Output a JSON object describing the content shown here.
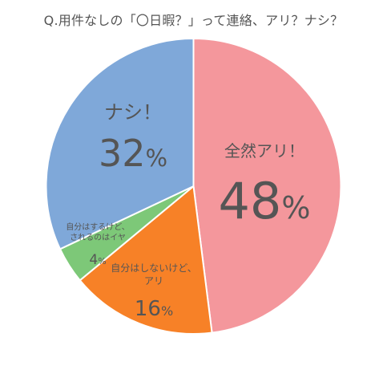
{
  "chart_data": {
    "type": "pie",
    "title": "Q.用件なしの「〇日暇？」って連絡、アリ？ナシ？",
    "slices": [
      {
        "label": "全然アリ！",
        "value": 48,
        "value_label": "48%",
        "color": "#F4979C"
      },
      {
        "label": "自分はしないけど、アリ",
        "label_lines": [
          "自分はしないけど、",
          "アリ"
        ],
        "value": 16,
        "value_label": "16%",
        "color": "#F78127"
      },
      {
        "label": "自分はするけど、されるのはイヤ",
        "label_lines": [
          "自分はするけど、",
          "されるのはイヤ"
        ],
        "value": 4,
        "value_label": "4%",
        "color": "#7DC878"
      },
      {
        "label": "ナシ！",
        "value": 32,
        "value_label": "32%",
        "color": "#7FA8D9"
      }
    ],
    "start_angle_deg": 0,
    "direction": "clockwise"
  }
}
